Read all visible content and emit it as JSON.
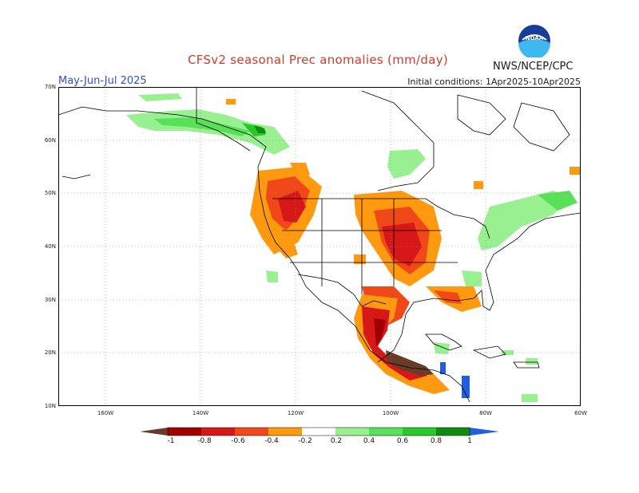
{
  "header": {
    "title": "CFSv2 seasonal Prec anomalies (mm/day)",
    "season": "May-Jun-Jul 2025",
    "initial_conditions": "Initial conditions: 1Apr2025-10Apr2025",
    "agency": "NWS/NCEP/CPC",
    "logo_text": "NOAA"
  },
  "map": {
    "lat_labels": [
      "70N",
      "60N",
      "50N",
      "40N",
      "30N",
      "20N",
      "10N"
    ],
    "lon_labels": [
      "160W",
      "140W",
      "120W",
      "100W",
      "80W",
      "60W"
    ],
    "background": "#ffffff",
    "gridline": "dotted-gray"
  },
  "legend": {
    "tick_labels": [
      "-1",
      "-0.8",
      "-0.6",
      "-0.4",
      "-0.2",
      "0.2",
      "0.4",
      "0.6",
      "0.8",
      "1"
    ],
    "colors": {
      "below_minus1": "#6b3b2a",
      "m1_m08": "#a00000",
      "m08_m06": "#d81818",
      "m06_m04": "#f04818",
      "m04_m02": "#ff9a10",
      "p02_p04": "#98f090",
      "p04_p06": "#58e058",
      "p06_p08": "#28c828",
      "p08_p1": "#108c10",
      "above_1": "#2060e0"
    }
  }
}
